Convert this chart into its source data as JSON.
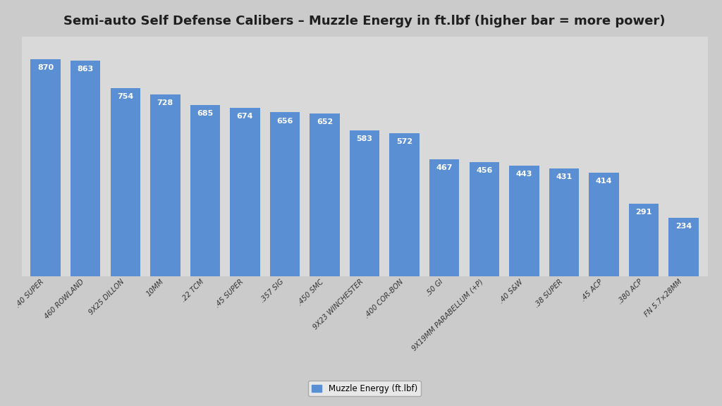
{
  "title": "Semi-auto Self Defense Calibers – Muzzle Energy in ft.lbf (higher bar = more power)",
  "categories": [
    ".40 SUPER",
    "460 ROWLAND",
    "9X25 DILLON",
    "10MM",
    ".22 TCM",
    ".45 SUPER",
    ".357 SIG",
    ".450 SMC",
    "9X23 WINCHESTER",
    ".400 COR-BON",
    ".50 GI",
    "9X19MM PARABELLUM (+P)",
    ".40 S&W",
    ".38 SUPER",
    ".45 ACP",
    ".380 ACP",
    "FN 5.7×28MM"
  ],
  "values": [
    870,
    863,
    754,
    728,
    685,
    674,
    656,
    652,
    583,
    572,
    467,
    456,
    443,
    431,
    414,
    291,
    234
  ],
  "bar_color": "#5B8FD4",
  "label_color": "#FFFFFF",
  "legend_label": "Muzzle Energy (ft.lbf)",
  "background_color": "#CBCBCB",
  "plot_background_color": "#D9D9D9",
  "grid_color": "#FFFFFF",
  "title_fontsize": 13,
  "label_fontsize": 8.0,
  "tick_fontsize": 7.2,
  "ylim": [
    0,
    960
  ],
  "bar_width": 0.75,
  "yticks": [
    0,
    100,
    200,
    300,
    400,
    500,
    600,
    700,
    800,
    900
  ]
}
